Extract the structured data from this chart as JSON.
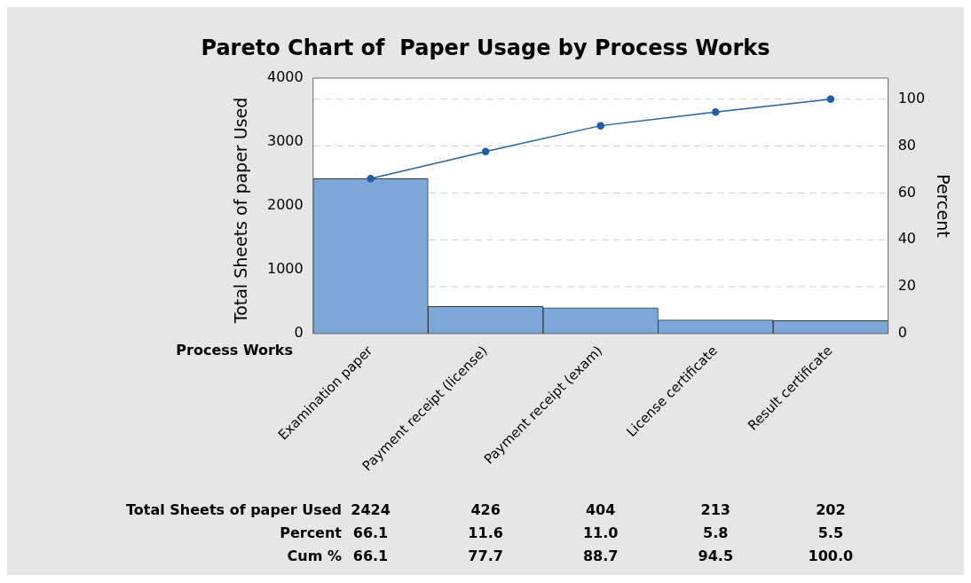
{
  "chart_data": {
    "type": "bar",
    "title": "Pareto Chart of  Paper Usage by Process Works",
    "xlabel": "Process Works",
    "ylabel": "Total Sheets of paper Used",
    "y2label": "Percent",
    "categories": [
      "Examination paper",
      "Payment receipt (license)",
      "Payment receipt (exam)",
      "License certificate",
      "Result certificate"
    ],
    "series": [
      {
        "color": "#7ba7d9",
        "values": [
          2424,
          426,
          404,
          213,
          202
        ],
        "value_labels": [
          "2424",
          "426",
          "404",
          "213",
          "202"
        ]
      },
      {
        "type": "line",
        "axis": "y2",
        "color": "#1f5fa8",
        "values": [
          66.1,
          77.7,
          88.7,
          94.5,
          100.0
        ],
        "value_labels": [
          "66.1",
          "77.7",
          "88.7",
          "94.5",
          "100.0"
        ]
      }
    ],
    "annotations": [
      "Total Sheets of paper Used",
      "Percent",
      "Cum %",
      "66.1",
      "11.6",
      "11.0",
      "5.8",
      "5.5"
    ],
    "ylim": [
      0,
      4000
    ],
    "yticks": [
      0,
      1000,
      2000,
      3000,
      4000
    ],
    "y2lim": [
      0,
      109
    ],
    "y2ticks": [
      0,
      20,
      40,
      60,
      80,
      100
    ],
    "grid": "y",
    "legend": false,
    "marker": "circle",
    "line_style": "solid"
  }
}
